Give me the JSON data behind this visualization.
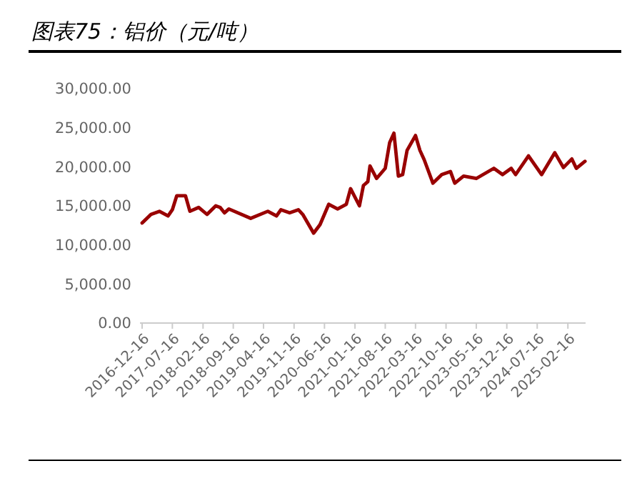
{
  "chart_data": {
    "type": "line",
    "title": "图表75：铝价（元/吨）",
    "x": [
      "2016-12-16",
      "2017-02-16",
      "2017-04-16",
      "2017-06-16",
      "2017-07-16",
      "2017-08-16",
      "2017-10-16",
      "2017-11-16",
      "2018-01-16",
      "2018-03-16",
      "2018-05-16",
      "2018-06-16",
      "2018-07-16",
      "2018-08-16",
      "2019-01-16",
      "2019-05-16",
      "2019-07-16",
      "2019-08-16",
      "2019-10-16",
      "2019-12-16",
      "2020-01-16",
      "2020-04-01",
      "2020-05-16",
      "2020-07-16",
      "2020-09-16",
      "2020-11-16",
      "2020-12-16",
      "2021-02-16",
      "2021-03-16",
      "2021-04-16",
      "2021-05-01",
      "2021-06-16",
      "2021-08-16",
      "2021-09-16",
      "2021-10-16",
      "2021-11-16",
      "2021-12-16",
      "2022-01-16",
      "2022-03-16",
      "2022-04-16",
      "2022-05-16",
      "2022-07-16",
      "2022-09-16",
      "2022-11-16",
      "2022-12-16",
      "2023-02-16",
      "2023-05-16",
      "2023-09-16",
      "2023-11-16",
      "2024-01-16",
      "2024-02-16",
      "2024-05-16",
      "2024-08-16",
      "2024-11-16",
      "2025-01-16",
      "2025-03-16",
      "2025-04-16",
      "2025-06-16"
    ],
    "series": [
      {
        "color": "#990000",
        "values": [
          12800,
          13900,
          14300,
          13700,
          14500,
          16300,
          16300,
          14300,
          14800,
          13900,
          15000,
          14800,
          14100,
          14600,
          13400,
          14300,
          13700,
          14500,
          14100,
          14500,
          13900,
          11500,
          12600,
          15200,
          14600,
          15200,
          17200,
          15000,
          17600,
          18100,
          20100,
          18500,
          19800,
          23100,
          24300,
          18800,
          19000,
          22100,
          24000,
          22100,
          20900,
          17900,
          19000,
          19400,
          17900,
          18800,
          18500,
          19800,
          19000,
          19800,
          19000,
          21400,
          19000,
          21800,
          19900,
          21000,
          19800,
          20700
        ]
      }
    ],
    "xlim": [
      "2016-12-01",
      "2025-06-20"
    ],
    "xticks": [
      "2016-12-16",
      "2017-07-16",
      "2018-02-16",
      "2018-09-16",
      "2019-04-16",
      "2019-11-16",
      "2020-06-16",
      "2021-01-16",
      "2021-08-16",
      "2022-03-16",
      "2022-10-16",
      "2023-05-16",
      "2023-12-16",
      "2024-07-16",
      "2025-02-16"
    ],
    "ylim": [
      0,
      30000
    ],
    "yticks": [
      {
        "value": 0,
        "label": "0.00"
      },
      {
        "value": 5000,
        "label": "5,000.00"
      },
      {
        "value": 10000,
        "label": "10,000.00"
      },
      {
        "value": 15000,
        "label": "15,000.00"
      },
      {
        "value": 20000,
        "label": "20,000.00"
      },
      {
        "value": 25000,
        "label": "25,000.00"
      },
      {
        "value": 30000,
        "label": "30,000.00"
      }
    ],
    "grid": false,
    "marker": "none",
    "line_style": "solid"
  }
}
